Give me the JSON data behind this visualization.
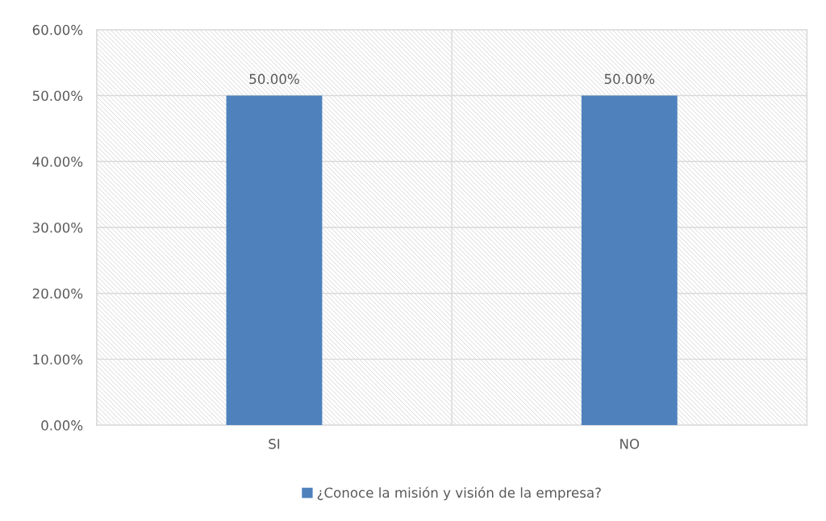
{
  "chart_data": {
    "type": "bar",
    "categories": [
      "SI",
      "NO"
    ],
    "series": [
      {
        "name": "¿Conoce la misión y visión de la empresa?",
        "color": "#4f81bd",
        "values": [
          50,
          50
        ],
        "value_labels": [
          "50.00%",
          "50.00%"
        ]
      }
    ],
    "ylim": [
      0,
      60
    ],
    "yticks": [
      {
        "value": 0,
        "label": "0.00%"
      },
      {
        "value": 10,
        "label": "10.00%"
      },
      {
        "value": 20,
        "label": "20.00%"
      },
      {
        "value": 30,
        "label": "30.00%"
      },
      {
        "value": 40,
        "label": "40.00%"
      },
      {
        "value": 50,
        "label": "50.00%"
      },
      {
        "value": 60,
        "label": "60.00%"
      }
    ],
    "grid": true,
    "legend": "bottom"
  }
}
